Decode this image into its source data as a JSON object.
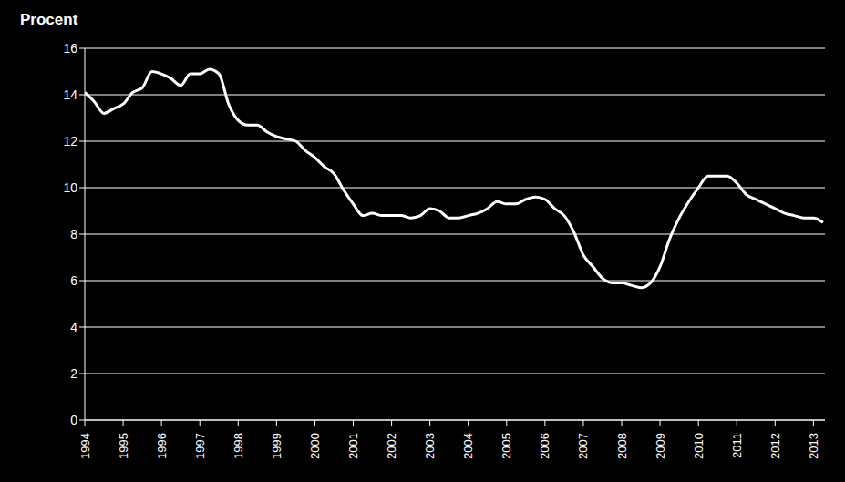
{
  "chart_data": {
    "type": "line",
    "y_label": "Procent",
    "x": [
      1994,
      1994.25,
      1994.5,
      1994.75,
      1995,
      1995.25,
      1995.5,
      1995.75,
      1996,
      1996.25,
      1996.5,
      1996.75,
      1997,
      1997.25,
      1997.5,
      1997.75,
      1998,
      1998.25,
      1998.5,
      1998.75,
      1999,
      1999.25,
      1999.5,
      1999.75,
      2000,
      2000.25,
      2000.5,
      2000.75,
      2001,
      2001.25,
      2001.5,
      2001.75,
      2002,
      2002.25,
      2002.5,
      2002.75,
      2003,
      2003.25,
      2003.5,
      2003.75,
      2004,
      2004.25,
      2004.5,
      2004.75,
      2005,
      2005.25,
      2005.5,
      2005.75,
      2006,
      2006.25,
      2006.5,
      2006.75,
      2007,
      2007.25,
      2007.5,
      2007.75,
      2008,
      2008.25,
      2008.5,
      2008.75,
      2009,
      2009.25,
      2009.5,
      2009.75,
      2010,
      2010.25,
      2010.5,
      2010.75,
      2011,
      2011.25,
      2011.5,
      2011.75,
      2012,
      2012.25,
      2012.5,
      2012.75,
      2013,
      2013.25
    ],
    "values": [
      14.1,
      13.7,
      13.2,
      13.4,
      13.6,
      14.1,
      14.3,
      15.0,
      14.9,
      14.7,
      14.4,
      14.9,
      14.9,
      15.1,
      14.9,
      13.6,
      12.9,
      12.7,
      12.7,
      12.4,
      12.2,
      12.1,
      12.0,
      11.6,
      11.3,
      10.9,
      10.6,
      9.9,
      9.3,
      8.8,
      8.9,
      8.8,
      8.8,
      8.8,
      8.7,
      8.8,
      9.1,
      9.0,
      8.7,
      8.7,
      8.8,
      8.9,
      9.1,
      9.4,
      9.3,
      9.3,
      9.5,
      9.6,
      9.5,
      9.1,
      8.8,
      8.1,
      7.1,
      6.6,
      6.1,
      5.9,
      5.9,
      5.8,
      5.7,
      5.9,
      6.6,
      7.8,
      8.7,
      9.4,
      10.0,
      10.5,
      10.5,
      10.5,
      10.2,
      9.7,
      9.5,
      9.3,
      9.1,
      8.9,
      8.8,
      8.7,
      8.7,
      8.5
    ],
    "color": "#ffffff",
    "xlim": [
      1994,
      2013.3
    ],
    "xticks": [
      1994,
      1995,
      1996,
      1997,
      1998,
      1999,
      2000,
      2001,
      2002,
      2003,
      2004,
      2005,
      2006,
      2007,
      2008,
      2009,
      2010,
      2011,
      2012,
      2013
    ],
    "ylim": [
      0,
      16
    ],
    "yticks": [
      0,
      2,
      4,
      6,
      8,
      10,
      12,
      14,
      16
    ],
    "grid": true
  }
}
